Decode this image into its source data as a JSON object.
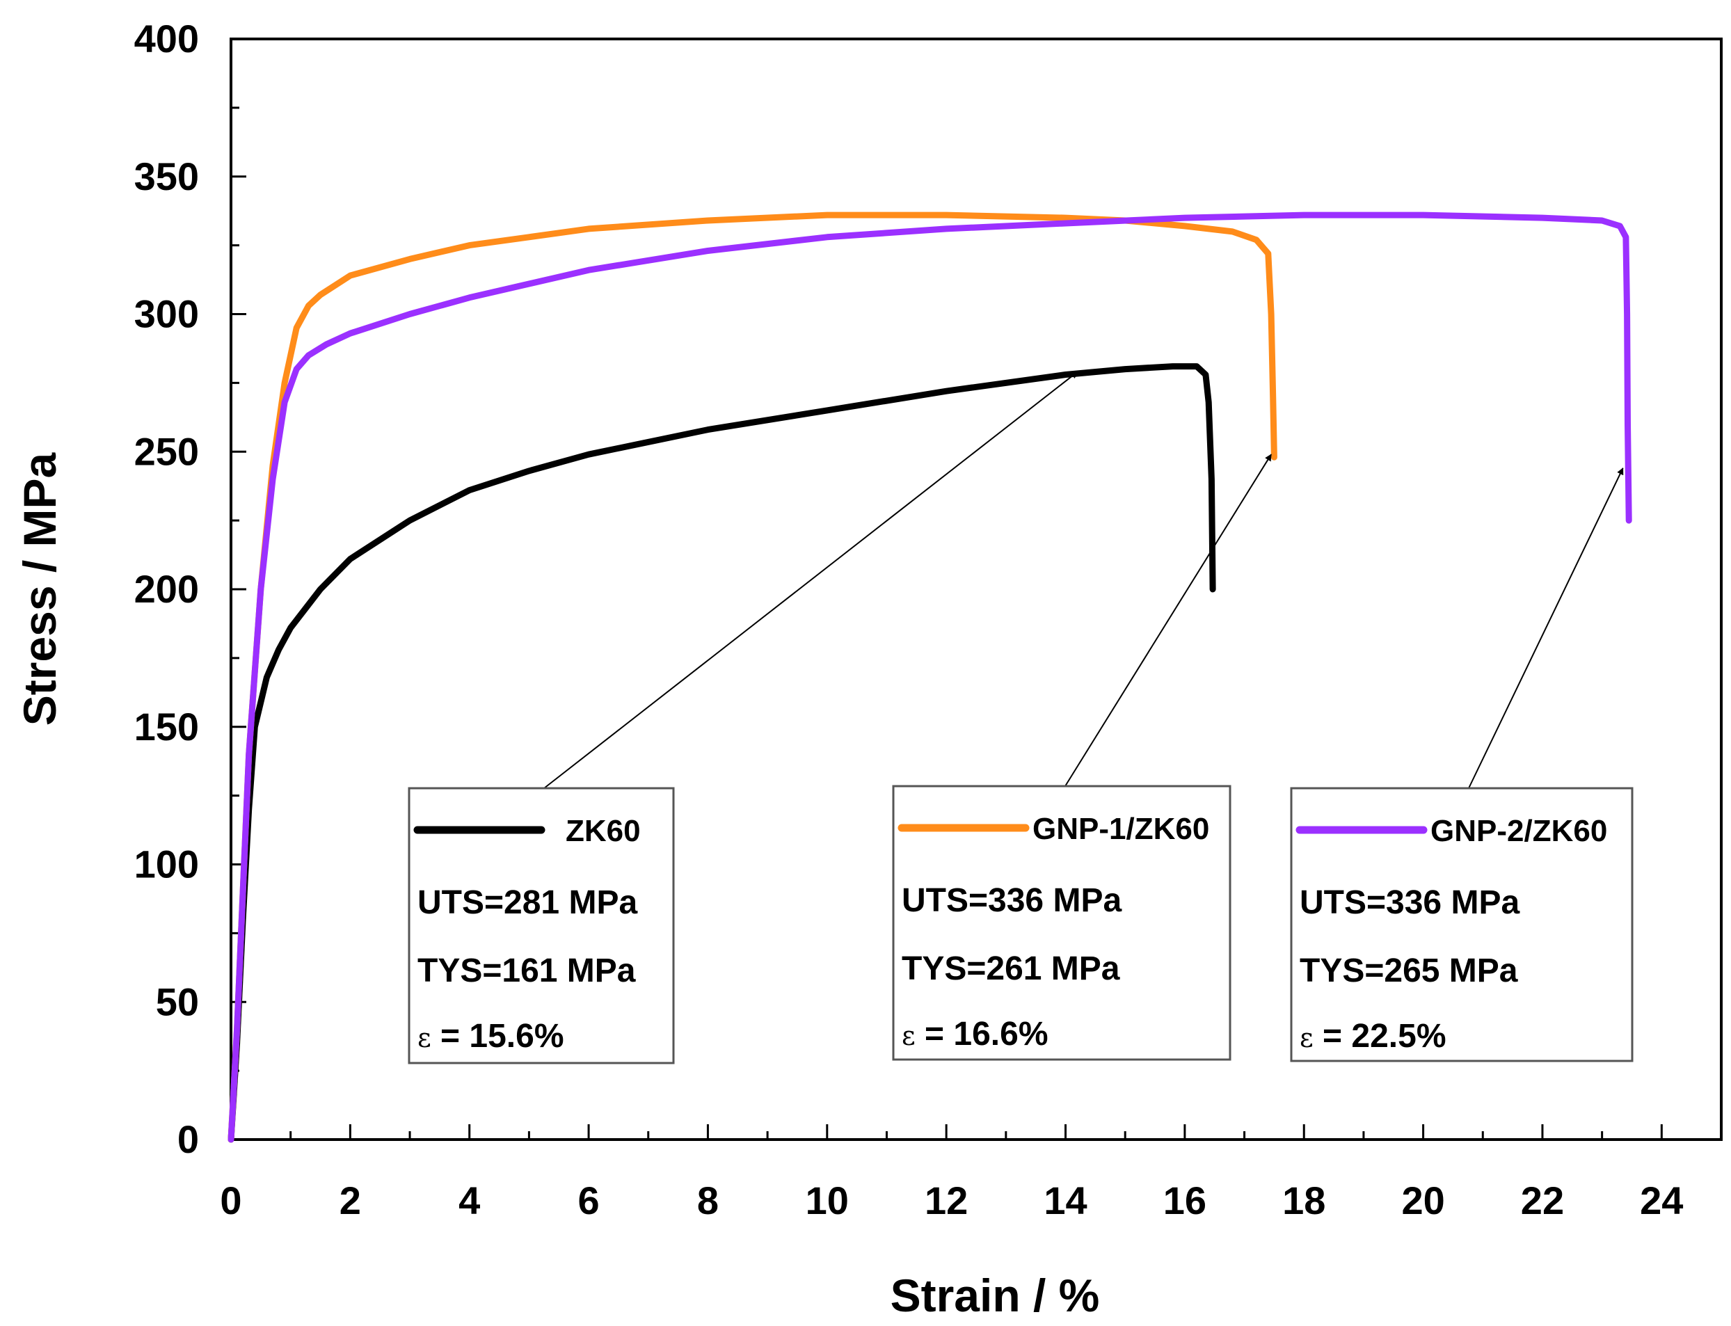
{
  "chart_data": {
    "type": "line",
    "xlabel": "Strain / %",
    "ylabel": "Stress / MPa",
    "xlim": [
      0,
      25
    ],
    "ylim": [
      0,
      400
    ],
    "x_ticks": [
      "0",
      "2",
      "4",
      "6",
      "8",
      "10",
      "12",
      "14",
      "16",
      "18",
      "20",
      "22",
      "24"
    ],
    "y_ticks": [
      "0",
      "50",
      "100",
      "150",
      "200",
      "250",
      "300",
      "350",
      "400"
    ],
    "grid": false,
    "series": [
      {
        "name": "ZK60",
        "color": "#000000",
        "points": [
          [
            0,
            0
          ],
          [
            0.1,
            35
          ],
          [
            0.2,
            80
          ],
          [
            0.3,
            120
          ],
          [
            0.4,
            150
          ],
          [
            0.6,
            168
          ],
          [
            0.8,
            178
          ],
          [
            1.0,
            186
          ],
          [
            1.5,
            200
          ],
          [
            2,
            211
          ],
          [
            3,
            225
          ],
          [
            4,
            236
          ],
          [
            5,
            243
          ],
          [
            6,
            249
          ],
          [
            8,
            258
          ],
          [
            10,
            265
          ],
          [
            12,
            272
          ],
          [
            14,
            278
          ],
          [
            15,
            280
          ],
          [
            15.8,
            281
          ],
          [
            16.2,
            281
          ],
          [
            16.35,
            278
          ],
          [
            16.4,
            268
          ],
          [
            16.45,
            240
          ],
          [
            16.47,
            200
          ]
        ],
        "annotation": {
          "uts": "UTS=281 MPa",
          "tys": "TYS=161 MPa",
          "eps_symbol": "ε",
          "eps_text": "= 15.6%",
          "arrow_target": [
            14.2,
            279
          ]
        }
      },
      {
        "name": "GNP-1/ZK60",
        "color": "#ff8c1a",
        "points": [
          [
            0,
            0
          ],
          [
            0.1,
            40
          ],
          [
            0.2,
            90
          ],
          [
            0.3,
            140
          ],
          [
            0.5,
            200
          ],
          [
            0.7,
            245
          ],
          [
            0.9,
            275
          ],
          [
            1.1,
            295
          ],
          [
            1.3,
            303
          ],
          [
            1.5,
            307
          ],
          [
            2,
            314
          ],
          [
            3,
            320
          ],
          [
            4,
            325
          ],
          [
            5,
            328
          ],
          [
            6,
            331
          ],
          [
            8,
            334
          ],
          [
            10,
            336
          ],
          [
            12,
            336
          ],
          [
            14,
            335
          ],
          [
            15,
            334
          ],
          [
            16,
            332
          ],
          [
            16.8,
            330
          ],
          [
            17.2,
            327
          ],
          [
            17.4,
            322
          ],
          [
            17.45,
            300
          ],
          [
            17.48,
            270
          ],
          [
            17.5,
            248
          ]
        ],
        "annotation": {
          "uts": "UTS=336 MPa",
          "tys": "TYS=261 MPa",
          "eps_symbol": "ε",
          "eps_text": "= 16.6%",
          "arrow_target": [
            17.45,
            249
          ]
        }
      },
      {
        "name": "GNP-2/ZK60",
        "color": "#9b30ff",
        "points": [
          [
            0,
            0
          ],
          [
            0.1,
            40
          ],
          [
            0.2,
            90
          ],
          [
            0.3,
            140
          ],
          [
            0.5,
            200
          ],
          [
            0.7,
            240
          ],
          [
            0.9,
            268
          ],
          [
            1.1,
            280
          ],
          [
            1.3,
            285
          ],
          [
            1.6,
            289
          ],
          [
            2,
            293
          ],
          [
            3,
            300
          ],
          [
            4,
            306
          ],
          [
            6,
            316
          ],
          [
            8,
            323
          ],
          [
            10,
            328
          ],
          [
            12,
            331
          ],
          [
            14,
            333
          ],
          [
            16,
            335
          ],
          [
            18,
            336
          ],
          [
            20,
            336
          ],
          [
            22,
            335
          ],
          [
            23,
            334
          ],
          [
            23.3,
            332
          ],
          [
            23.4,
            328
          ],
          [
            23.42,
            300
          ],
          [
            23.43,
            260
          ],
          [
            23.45,
            225
          ]
        ],
        "annotation": {
          "uts": "UTS=336 MPa",
          "tys": "TYS=265 MPa",
          "eps_symbol": "ε",
          "eps_text": "= 22.5%",
          "arrow_target": [
            23.35,
            244
          ]
        }
      }
    ]
  }
}
